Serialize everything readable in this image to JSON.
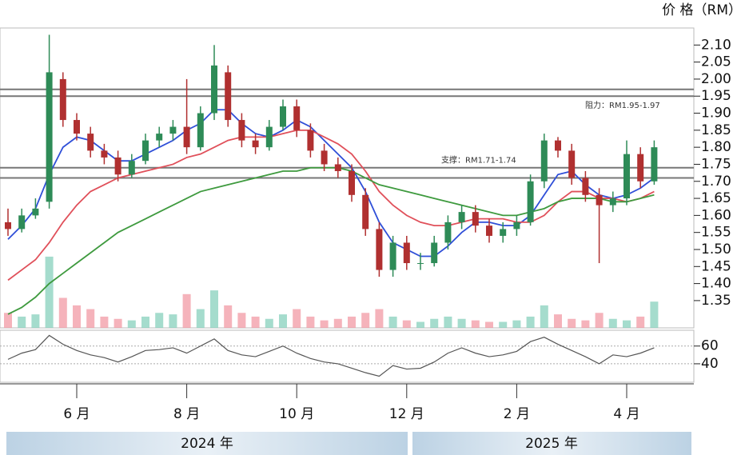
{
  "chart_data": [
    {
      "type": "candlestick",
      "y_label": "价 格（RM）",
      "categories": [
        null,
        null,
        null,
        null,
        null,
        "6 月",
        null,
        null,
        null,
        null,
        null,
        null,
        null,
        "8 月",
        null,
        null,
        null,
        null,
        null,
        null,
        null,
        "10 月",
        null,
        null,
        null,
        null,
        null,
        null,
        null,
        "12 月",
        null,
        null,
        null,
        null,
        null,
        null,
        null,
        "2 月",
        null,
        null,
        null,
        null,
        null,
        null,
        null,
        "4 月",
        null,
        null
      ],
      "open": [
        1.58,
        1.56,
        1.6,
        1.64,
        2.0,
        1.88,
        1.84,
        1.79,
        1.77,
        1.72,
        1.76,
        1.82,
        1.84,
        1.86,
        1.8,
        1.9,
        2.02,
        1.88,
        1.82,
        1.8,
        1.86,
        1.92,
        1.85,
        1.79,
        1.75,
        1.73,
        1.66,
        1.56,
        1.44,
        1.52,
        1.46,
        1.46,
        1.52,
        1.58,
        1.61,
        1.57,
        1.54,
        1.56,
        1.58,
        1.7,
        1.82,
        1.79,
        1.71,
        1.66,
        1.63,
        1.65,
        1.78,
        1.7
      ],
      "high": [
        1.62,
        1.62,
        1.65,
        2.13,
        2.02,
        1.9,
        1.86,
        1.81,
        1.79,
        1.78,
        1.84,
        1.86,
        1.88,
        2.0,
        1.92,
        2.1,
        2.04,
        1.9,
        1.84,
        1.88,
        1.94,
        1.94,
        1.87,
        1.81,
        1.77,
        1.75,
        1.68,
        1.58,
        1.54,
        1.54,
        1.49,
        1.54,
        1.6,
        1.63,
        1.63,
        1.59,
        1.58,
        1.6,
        1.72,
        1.84,
        1.83,
        1.81,
        1.73,
        1.68,
        1.67,
        1.82,
        1.8,
        1.82
      ],
      "low": [
        1.54,
        1.55,
        1.59,
        1.62,
        1.86,
        1.82,
        1.77,
        1.75,
        1.7,
        1.71,
        1.75,
        1.8,
        1.82,
        1.78,
        1.79,
        1.88,
        1.86,
        1.8,
        1.78,
        1.79,
        1.85,
        1.83,
        1.77,
        1.73,
        1.71,
        1.64,
        1.54,
        1.42,
        1.42,
        1.44,
        1.44,
        1.45,
        1.5,
        1.56,
        1.55,
        1.52,
        1.52,
        1.54,
        1.57,
        1.68,
        1.77,
        1.69,
        1.64,
        1.46,
        1.61,
        1.63,
        1.68,
        1.69
      ],
      "close": [
        1.56,
        1.6,
        1.62,
        2.02,
        1.88,
        1.84,
        1.79,
        1.77,
        1.72,
        1.76,
        1.82,
        1.84,
        1.86,
        1.8,
        1.9,
        2.04,
        1.88,
        1.82,
        1.8,
        1.86,
        1.92,
        1.85,
        1.79,
        1.75,
        1.73,
        1.66,
        1.56,
        1.44,
        1.52,
        1.46,
        1.46,
        1.52,
        1.58,
        1.61,
        1.57,
        1.54,
        1.56,
        1.58,
        1.7,
        1.82,
        1.79,
        1.71,
        1.66,
        1.63,
        1.65,
        1.78,
        1.7,
        1.8
      ],
      "up_color": "#2e8b57",
      "down_color": "#b03030",
      "lines": [
        {
          "color": "#2f4fd8",
          "values": [
            1.53,
            1.57,
            1.62,
            1.72,
            1.8,
            1.83,
            1.82,
            1.79,
            1.76,
            1.76,
            1.78,
            1.8,
            1.82,
            1.85,
            1.87,
            1.91,
            1.91,
            1.87,
            1.84,
            1.83,
            1.85,
            1.88,
            1.86,
            1.82,
            1.78,
            1.74,
            1.67,
            1.58,
            1.52,
            1.5,
            1.48,
            1.48,
            1.51,
            1.55,
            1.58,
            1.58,
            1.57,
            1.57,
            1.6,
            1.66,
            1.72,
            1.73,
            1.69,
            1.66,
            1.65,
            1.66,
            1.68,
            1.71
          ]
        },
        {
          "color": "#e0505a",
          "values": [
            1.41,
            1.44,
            1.47,
            1.52,
            1.58,
            1.63,
            1.67,
            1.69,
            1.71,
            1.72,
            1.73,
            1.74,
            1.75,
            1.77,
            1.78,
            1.8,
            1.82,
            1.83,
            1.83,
            1.83,
            1.84,
            1.85,
            1.85,
            1.83,
            1.81,
            1.78,
            1.73,
            1.67,
            1.63,
            1.6,
            1.58,
            1.57,
            1.57,
            1.58,
            1.59,
            1.59,
            1.59,
            1.58,
            1.58,
            1.6,
            1.64,
            1.67,
            1.67,
            1.65,
            1.65,
            1.64,
            1.65,
            1.67
          ]
        },
        {
          "color": "#3e9a3e",
          "values": [
            1.31,
            1.33,
            1.36,
            1.4,
            1.43,
            1.46,
            1.49,
            1.52,
            1.55,
            1.57,
            1.59,
            1.61,
            1.63,
            1.65,
            1.67,
            1.68,
            1.69,
            1.7,
            1.71,
            1.72,
            1.73,
            1.73,
            1.74,
            1.74,
            1.74,
            1.73,
            1.71,
            1.69,
            1.68,
            1.67,
            1.66,
            1.65,
            1.64,
            1.63,
            1.62,
            1.61,
            1.6,
            1.6,
            1.61,
            1.62,
            1.64,
            1.65,
            1.65,
            1.65,
            1.64,
            1.64,
            1.65,
            1.66
          ]
        }
      ],
      "volume": {
        "axis": "y2",
        "values": [
          20,
          15,
          18,
          95,
          40,
          30,
          25,
          15,
          12,
          10,
          15,
          20,
          18,
          45,
          25,
          50,
          30,
          20,
          15,
          12,
          18,
          25,
          15,
          10,
          12,
          15,
          20,
          25,
          15,
          10,
          8,
          12,
          15,
          12,
          10,
          8,
          8,
          10,
          15,
          30,
          18,
          12,
          10,
          20,
          12,
          10,
          15,
          35
        ]
      },
      "y2lim": [
        0,
        400
      ],
      "ylim": [
        1.27,
        2.15
      ],
      "yticks": [
        {
          "value": 2.1,
          "label": "2.10"
        },
        2.05,
        {
          "value": 2.0,
          "label": "2.00"
        },
        1.95,
        {
          "value": 1.9,
          "label": "1.90"
        },
        1.85,
        {
          "value": 1.8,
          "label": "1.80"
        },
        1.75,
        {
          "value": 1.7,
          "label": "1.70"
        },
        1.65,
        {
          "value": 1.6,
          "label": "1.60"
        },
        1.55,
        {
          "value": 1.5,
          "label": "1.50"
        },
        1.45,
        {
          "value": 1.4,
          "label": "1.40"
        },
        1.35
      ],
      "annotations": [
        {
          "text": "阻力：RM1.95-1.97",
          "range": [
            1.95,
            1.97
          ]
        },
        {
          "text": "支撑：RM1.71-1.74",
          "range": [
            1.71,
            1.74
          ]
        }
      ],
      "year_labels": [
        "2024 年",
        "2025 年"
      ]
    },
    {
      "type": "line",
      "color": "#555555",
      "values": [
        45,
        52,
        56,
        72,
        62,
        55,
        50,
        47,
        42,
        48,
        55,
        56,
        58,
        52,
        60,
        68,
        55,
        50,
        48,
        54,
        60,
        52,
        46,
        42,
        40,
        35,
        30,
        26,
        38,
        34,
        35,
        42,
        52,
        58,
        52,
        48,
        50,
        54,
        65,
        70,
        62,
        55,
        48,
        40,
        50,
        48,
        52,
        58
      ],
      "ylim": [
        21,
        76
      ],
      "yticks": [
        60,
        40
      ]
    }
  ]
}
